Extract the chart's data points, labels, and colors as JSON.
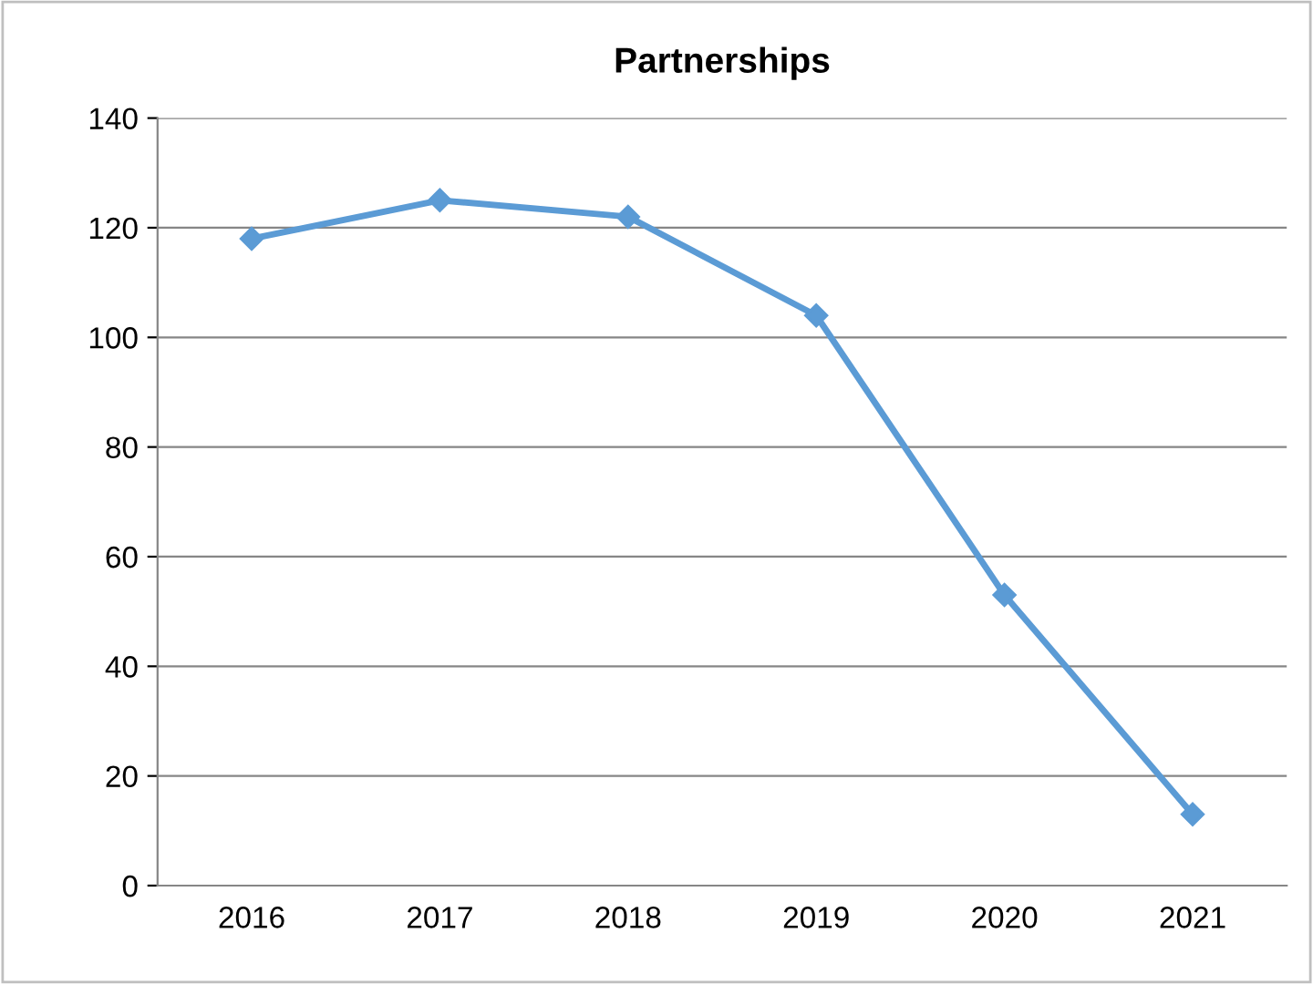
{
  "chart_data": {
    "type": "line",
    "title": "Partnerships",
    "categories": [
      "2016",
      "2017",
      "2018",
      "2019",
      "2020",
      "2021"
    ],
    "series": [
      {
        "color": "#5b9bd5",
        "values": [
          118,
          125,
          122,
          104,
          53,
          13
        ]
      }
    ],
    "ylim": [
      0,
      140
    ],
    "yticks": [
      0,
      20,
      40,
      60,
      80,
      100,
      120,
      140
    ],
    "grid": "y",
    "marker": "diamond",
    "line_style": "solid",
    "legend": false
  }
}
